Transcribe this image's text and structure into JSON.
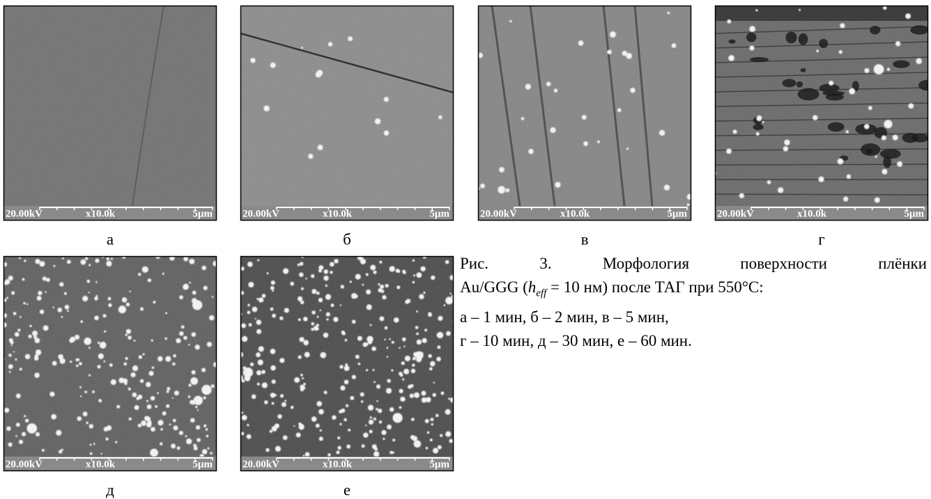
{
  "panels": [
    {
      "label": "а",
      "voltage": "20.00kV",
      "magnification": "x10.0k",
      "scale": "5µm"
    },
    {
      "label": "б",
      "voltage": "20.00kV",
      "magnification": "x10.0k",
      "scale": "5µm"
    },
    {
      "label": "в",
      "voltage": "20.00kV",
      "magnification": "x10.0k",
      "scale": "5µm"
    },
    {
      "label": "г",
      "voltage": "20.00kV",
      "magnification": "x10.0k",
      "scale": "5µm"
    },
    {
      "label": "д",
      "voltage": "20.00kV",
      "magnification": "x10.0k",
      "scale": "5µm"
    },
    {
      "label": "е",
      "voltage": "20.00kV",
      "magnification": "x10.0k",
      "scale": "5µm"
    }
  ],
  "caption": {
    "line1": "Рис. 3. Морфология поверхности плёнки",
    "line2_prefix": "Au/GGG (",
    "line2_symbol": "h",
    "line2_subscript": "eff",
    "line2_suffix": " = 10 нм) после ТАГ при 550°C:",
    "line3": "а – 1 мин, б – 2 мин, в – 5 мин,",
    "line4": "г – 10 мин, д – 30 мин, е – 60 мин."
  }
}
